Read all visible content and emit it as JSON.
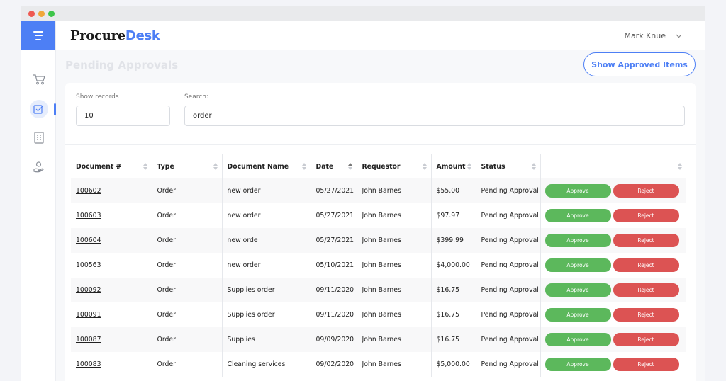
{
  "app": {
    "logo_part1": "Procure",
    "logo_part2": "Desk",
    "brand_color": "#4d7ff5"
  },
  "header": {
    "user_name": "Mark Knue"
  },
  "sidebar": {
    "items": [
      {
        "icon": "cart-icon"
      },
      {
        "icon": "checklist-icon",
        "active": true
      },
      {
        "icon": "document-icon"
      },
      {
        "icon": "hand-money-icon"
      }
    ]
  },
  "page": {
    "title": "Pending Approvals",
    "show_approved_label": "Show Approved Items"
  },
  "filters": {
    "show_records_label": "Show records",
    "show_records_value": "10",
    "search_label": "Search:",
    "search_value": "order"
  },
  "table": {
    "columns": [
      "Document #",
      "Type",
      "Document Name",
      "Date",
      "Requestor",
      "Amount",
      "Status",
      ""
    ],
    "sorted_column": "Date",
    "rows": [
      {
        "doc": "100602",
        "type": "Order",
        "name": "new order",
        "date": "05/27/2021",
        "requestor": "John Barnes",
        "amount": "$55.00",
        "status": "Pending Approval"
      },
      {
        "doc": "100603",
        "type": "Order",
        "name": "new order",
        "date": "05/27/2021",
        "requestor": "John Barnes",
        "amount": "$97.97",
        "status": "Pending Approval"
      },
      {
        "doc": "100604",
        "type": "Order",
        "name": "new orde",
        "date": "05/27/2021",
        "requestor": "John Barnes",
        "amount": "$399.99",
        "status": "Pending Approval"
      },
      {
        "doc": "100563",
        "type": "Order",
        "name": "new order",
        "date": "05/10/2021",
        "requestor": "John Barnes",
        "amount": "$4,000.00",
        "status": "Pending Approval"
      },
      {
        "doc": "100092",
        "type": "Order",
        "name": "Supplies order",
        "date": "09/11/2020",
        "requestor": "John Barnes",
        "amount": "$16.75",
        "status": "Pending Approval"
      },
      {
        "doc": "100091",
        "type": "Order",
        "name": "Supplies order",
        "date": "09/11/2020",
        "requestor": "John Barnes",
        "amount": "$16.75",
        "status": "Pending Approval"
      },
      {
        "doc": "100087",
        "type": "Order",
        "name": "Supplies",
        "date": "09/09/2020",
        "requestor": "John Barnes",
        "amount": "$16.75",
        "status": "Pending Approval"
      },
      {
        "doc": "100083",
        "type": "Order",
        "name": "Cleaning services",
        "date": "09/02/2020",
        "requestor": "John Barnes",
        "amount": "$5,000.00",
        "status": "Pending Approval"
      }
    ],
    "approve_label": "Approve",
    "reject_label": "Reject"
  }
}
